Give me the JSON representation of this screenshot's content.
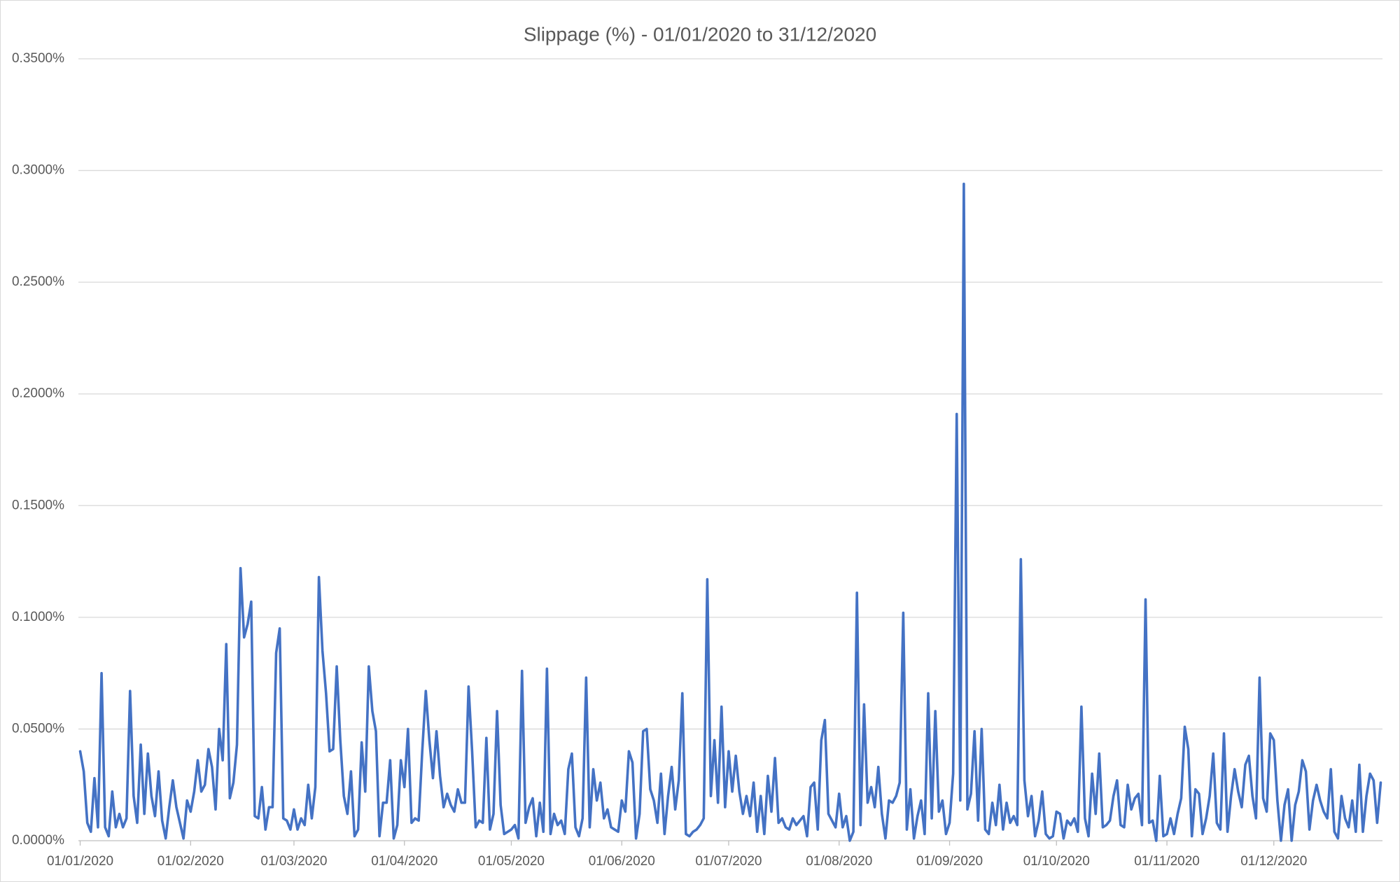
{
  "chart_data": {
    "type": "line",
    "title": "Slippage (%) - 01/01/2020 to 31/12/2020",
    "categories": [
      "01/01/2020",
      null,
      null,
      null,
      null,
      null,
      null,
      null,
      null,
      null,
      null,
      null,
      null,
      null,
      null,
      null,
      null,
      null,
      null,
      null,
      null,
      null,
      null,
      null,
      null,
      null,
      null,
      null,
      null,
      null,
      null,
      "01/02/2020",
      null,
      null,
      null,
      null,
      null,
      null,
      null,
      null,
      null,
      null,
      null,
      null,
      null,
      null,
      null,
      null,
      null,
      null,
      null,
      null,
      null,
      null,
      null,
      null,
      null,
      null,
      null,
      null,
      "01/03/2020",
      null,
      null,
      null,
      null,
      null,
      null,
      null,
      null,
      null,
      null,
      null,
      null,
      null,
      null,
      null,
      null,
      null,
      null,
      null,
      null,
      null,
      null,
      null,
      null,
      null,
      null,
      null,
      null,
      null,
      null,
      "01/04/2020",
      null,
      null,
      null,
      null,
      null,
      null,
      null,
      null,
      null,
      null,
      null,
      null,
      null,
      null,
      null,
      null,
      null,
      null,
      null,
      null,
      null,
      null,
      null,
      null,
      null,
      null,
      null,
      null,
      null,
      "01/05/2020",
      null,
      null,
      null,
      null,
      null,
      null,
      null,
      null,
      null,
      null,
      null,
      null,
      null,
      null,
      null,
      null,
      null,
      null,
      null,
      null,
      null,
      null,
      null,
      null,
      null,
      null,
      null,
      null,
      null,
      null,
      "01/06/2020",
      null,
      null,
      null,
      null,
      null,
      null,
      null,
      null,
      null,
      null,
      null,
      null,
      null,
      null,
      null,
      null,
      null,
      null,
      null,
      null,
      null,
      null,
      null,
      null,
      null,
      null,
      null,
      null,
      null,
      "01/07/2020",
      null,
      null,
      null,
      null,
      null,
      null,
      null,
      null,
      null,
      null,
      null,
      null,
      null,
      null,
      null,
      null,
      null,
      null,
      null,
      null,
      null,
      null,
      null,
      null,
      null,
      null,
      null,
      null,
      null,
      null,
      "01/08/2020",
      null,
      null,
      null,
      null,
      null,
      null,
      null,
      null,
      null,
      null,
      null,
      null,
      null,
      null,
      null,
      null,
      null,
      null,
      null,
      null,
      null,
      null,
      null,
      null,
      null,
      null,
      null,
      null,
      null,
      null,
      "01/09/2020",
      null,
      null,
      null,
      null,
      null,
      null,
      null,
      null,
      null,
      null,
      null,
      null,
      null,
      null,
      null,
      null,
      null,
      null,
      null,
      null,
      null,
      null,
      null,
      null,
      null,
      null,
      null,
      null,
      null,
      "01/10/2020",
      null,
      null,
      null,
      null,
      null,
      null,
      null,
      null,
      null,
      null,
      null,
      null,
      null,
      null,
      null,
      null,
      null,
      null,
      null,
      null,
      null,
      null,
      null,
      null,
      null,
      null,
      null,
      null,
      null,
      null,
      "01/11/2020",
      null,
      null,
      null,
      null,
      null,
      null,
      null,
      null,
      null,
      null,
      null,
      null,
      null,
      null,
      null,
      null,
      null,
      null,
      null,
      null,
      null,
      null,
      null,
      null,
      null,
      null,
      null,
      null,
      null,
      "01/12/2020",
      null,
      null,
      null,
      null,
      null,
      null,
      null,
      null,
      null,
      null,
      null,
      null,
      null,
      null,
      null,
      null,
      null,
      null,
      null,
      null,
      null,
      null,
      null,
      null,
      null,
      null,
      null,
      null,
      null,
      null
    ],
    "series": [
      {
        "color": "#4472c4",
        "values": [
          0.04,
          0.031,
          0.008,
          0.004,
          0.028,
          0.006,
          0.075,
          0.006,
          0.002,
          0.022,
          0.006,
          0.012,
          0.006,
          0.01,
          0.067,
          0.02,
          0.008,
          0.043,
          0.012,
          0.039,
          0.02,
          0.011,
          0.031,
          0.009,
          0.001,
          0.015,
          0.027,
          0.015,
          0.008,
          0.001,
          0.018,
          0.013,
          0.022,
          0.036,
          0.022,
          0.025,
          0.041,
          0.033,
          0.014,
          0.05,
          0.036,
          0.088,
          0.019,
          0.026,
          0.043,
          0.122,
          0.091,
          0.097,
          0.107,
          0.011,
          0.01,
          0.024,
          0.005,
          0.015,
          0.015,
          0.084,
          0.095,
          0.01,
          0.009,
          0.005,
          0.014,
          0.005,
          0.01,
          0.007,
          0.025,
          0.01,
          0.024,
          0.118,
          0.085,
          0.066,
          0.04,
          0.041,
          0.078,
          0.045,
          0.02,
          0.012,
          0.031,
          0.002,
          0.005,
          0.044,
          0.022,
          0.078,
          0.058,
          0.049,
          0.002,
          0.017,
          0.017,
          0.036,
          0.001,
          0.007,
          0.036,
          0.024,
          0.05,
          0.008,
          0.01,
          0.009,
          0.04,
          0.067,
          0.045,
          0.028,
          0.049,
          0.029,
          0.015,
          0.021,
          0.016,
          0.013,
          0.023,
          0.017,
          0.017,
          0.069,
          0.04,
          0.006,
          0.009,
          0.008,
          0.046,
          0.005,
          0.012,
          0.058,
          0.016,
          0.003,
          0.004,
          0.005,
          0.007,
          0.001,
          0.076,
          0.008,
          0.015,
          0.019,
          0.002,
          0.017,
          0.004,
          0.077,
          0.003,
          0.012,
          0.007,
          0.009,
          0.003,
          0.032,
          0.039,
          0.006,
          0.002,
          0.01,
          0.073,
          0.006,
          0.032,
          0.018,
          0.026,
          0.01,
          0.014,
          0.006,
          0.005,
          0.004,
          0.018,
          0.013,
          0.04,
          0.035,
          0.001,
          0.012,
          0.049,
          0.05,
          0.023,
          0.018,
          0.008,
          0.03,
          0.003,
          0.02,
          0.033,
          0.014,
          0.027,
          0.066,
          0.003,
          0.002,
          0.004,
          0.005,
          0.007,
          0.01,
          0.117,
          0.02,
          0.045,
          0.017,
          0.06,
          0.015,
          0.04,
          0.022,
          0.038,
          0.022,
          0.012,
          0.02,
          0.011,
          0.026,
          0.004,
          0.02,
          0.003,
          0.029,
          0.013,
          0.037,
          0.008,
          0.01,
          0.006,
          0.005,
          0.01,
          0.007,
          0.009,
          0.011,
          0.002,
          0.024,
          0.026,
          0.005,
          0.045,
          0.054,
          0.012,
          0.009,
          0.006,
          0.021,
          0.006,
          0.011,
          0.0,
          0.004,
          0.111,
          0.007,
          0.061,
          0.017,
          0.024,
          0.015,
          0.033,
          0.012,
          0.001,
          0.018,
          0.017,
          0.02,
          0.026,
          0.102,
          0.005,
          0.023,
          0.001,
          0.011,
          0.018,
          0.003,
          0.066,
          0.01,
          0.058,
          0.013,
          0.018,
          0.003,
          0.008,
          0.03,
          0.191,
          0.018,
          0.294,
          0.014,
          0.021,
          0.049,
          0.009,
          0.05,
          0.005,
          0.003,
          0.017,
          0.007,
          0.025,
          0.005,
          0.017,
          0.008,
          0.011,
          0.007,
          0.126,
          0.027,
          0.011,
          0.02,
          0.002,
          0.009,
          0.022,
          0.003,
          0.001,
          0.002,
          0.013,
          0.012,
          0.001,
          0.009,
          0.007,
          0.01,
          0.004,
          0.06,
          0.01,
          0.002,
          0.03,
          0.012,
          0.039,
          0.006,
          0.007,
          0.009,
          0.02,
          0.027,
          0.007,
          0.006,
          0.025,
          0.014,
          0.019,
          0.021,
          0.007,
          0.108,
          0.008,
          0.009,
          0.0,
          0.029,
          0.002,
          0.003,
          0.01,
          0.003,
          0.012,
          0.019,
          0.051,
          0.041,
          0.002,
          0.023,
          0.021,
          0.003,
          0.01,
          0.02,
          0.039,
          0.008,
          0.005,
          0.048,
          0.004,
          0.02,
          0.032,
          0.022,
          0.015,
          0.034,
          0.038,
          0.02,
          0.01,
          0.073,
          0.019,
          0.013,
          0.048,
          0.045,
          0.018,
          0.0,
          0.016,
          0.023,
          0.0,
          0.016,
          0.022,
          0.036,
          0.031,
          0.005,
          0.018,
          0.025,
          0.018,
          0.013,
          0.01,
          0.032,
          0.004,
          0.001,
          0.02,
          0.01,
          0.006,
          0.018,
          0.004,
          0.034,
          0.004,
          0.02,
          0.03,
          0.027,
          0.008,
          0.026
        ]
      }
    ],
    "ylim": [
      0,
      0.35
    ],
    "yticks": [
      {
        "value": 0,
        "label": "0.0000%"
      },
      {
        "value": 0.05,
        "label": "0.0500%"
      },
      {
        "value": 0.1,
        "label": "0.1000%"
      },
      {
        "value": 0.15,
        "label": "0.1500%"
      },
      {
        "value": 0.2,
        "label": "0.2000%"
      },
      {
        "value": 0.25,
        "label": "0.2500%"
      },
      {
        "value": 0.3,
        "label": "0.3000%"
      },
      {
        "value": 0.35,
        "label": "0.3500%"
      }
    ],
    "grid": true
  }
}
